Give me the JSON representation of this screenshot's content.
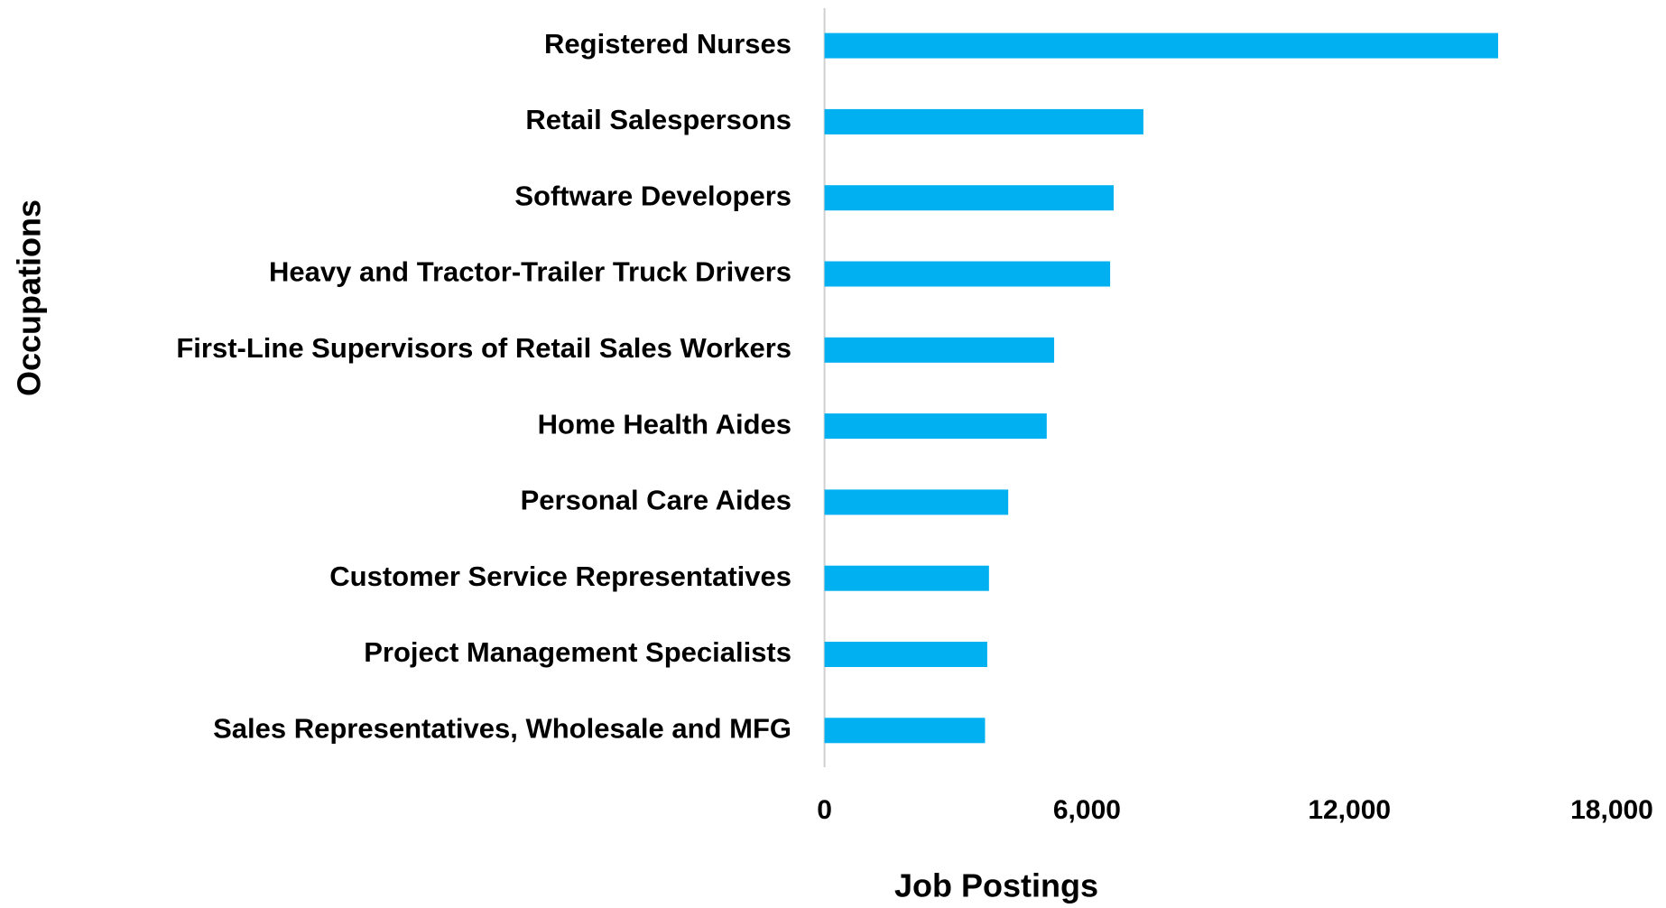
{
  "chart_data": {
    "type": "bar",
    "orientation": "horizontal",
    "x_label": "Job Postings",
    "y_label": "Occupations",
    "categories": [
      "Registered Nurses",
      "Retail Salespersons",
      "Software Developers",
      "Heavy and Tractor-Trailer Truck Drivers",
      "First-Line Supervisors of Retail Sales Workers",
      "Home Health Aides",
      "Personal Care Aides",
      "Customer Service Representatives",
      "Project Management Specialists",
      "Sales Representatives, Wholesale and MFG"
    ],
    "values": [
      15400,
      7290,
      6610,
      6530,
      5250,
      5080,
      4200,
      3760,
      3720,
      3670
    ],
    "color": "#00b0f0",
    "xlim": [
      0,
      18000
    ],
    "xticks": [
      0,
      {
        "value": 6000,
        "label": "6,000"
      },
      {
        "value": 12000,
        "label": "12,000"
      },
      {
        "value": 18000,
        "label": "18,000"
      }
    ],
    "grid": false
  }
}
